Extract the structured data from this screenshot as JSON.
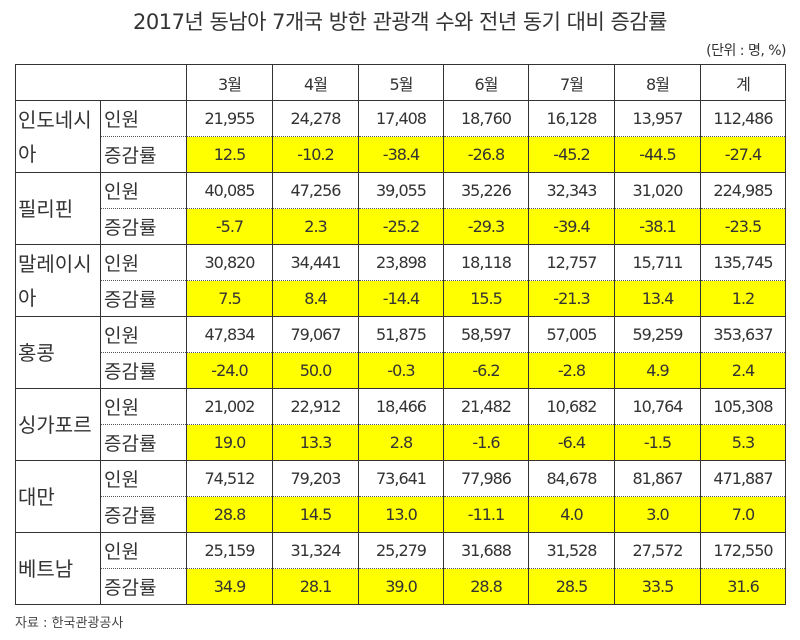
{
  "title": "2017년 동남아 7개국 방한 관광객 수와 전년 동기 대비 증감률",
  "unit": "(단위 : 명, %)",
  "columns": [
    "3월",
    "4월",
    "5월",
    "6월",
    "7월",
    "8월",
    "계"
  ],
  "row_labels": {
    "visitors": "인원",
    "change": "증감률"
  },
  "countries": [
    {
      "name": "인도네시아",
      "visitors": [
        "21,955",
        "24,278",
        "17,408",
        "18,760",
        "16,128",
        "13,957",
        "112,486"
      ],
      "change": [
        "12.5",
        "-10.2",
        "-38.4",
        "-26.8",
        "-45.2",
        "-44.5",
        "-27.4"
      ]
    },
    {
      "name": "필리핀",
      "visitors": [
        "40,085",
        "47,256",
        "39,055",
        "35,226",
        "32,343",
        "31,020",
        "224,985"
      ],
      "change": [
        "-5.7",
        "2.3",
        "-25.2",
        "-29.3",
        "-39.4",
        "-38.1",
        "-23.5"
      ]
    },
    {
      "name": "말레이시아",
      "visitors": [
        "30,820",
        "34,441",
        "23,898",
        "18,118",
        "12,757",
        "15,711",
        "135,745"
      ],
      "change": [
        "7.5",
        "8.4",
        "-14.4",
        "15.5",
        "-21.3",
        "13.4",
        "1.2"
      ]
    },
    {
      "name": "홍콩",
      "visitors": [
        "47,834",
        "79,067",
        "51,875",
        "58,597",
        "57,005",
        "59,259",
        "353,637"
      ],
      "change": [
        "-24.0",
        "50.0",
        "-0.3",
        "-6.2",
        "-2.8",
        "4.9",
        "2.4"
      ]
    },
    {
      "name": "싱가포르",
      "visitors": [
        "21,002",
        "22,912",
        "18,466",
        "21,482",
        "10,682",
        "10,764",
        "105,308"
      ],
      "change": [
        "19.0",
        "13.3",
        "2.8",
        "-1.6",
        "-6.4",
        "-1.5",
        "5.3"
      ]
    },
    {
      "name": "대만",
      "visitors": [
        "74,512",
        "79,203",
        "73,641",
        "77,986",
        "84,678",
        "81,867",
        "471,887"
      ],
      "change": [
        "28.8",
        "14.5",
        "13.0",
        "-11.1",
        "4.0",
        "3.0",
        "7.0"
      ]
    },
    {
      "name": "베트남",
      "visitors": [
        "25,159",
        "31,324",
        "25,279",
        "31,688",
        "31,528",
        "27,572",
        "172,550"
      ],
      "change": [
        "34.9",
        "28.1",
        "39.0",
        "28.8",
        "28.5",
        "33.5",
        "31.6"
      ]
    }
  ],
  "source": "자료 : 한국관광공사",
  "colors": {
    "highlight": "#ffff00",
    "border": "#333333"
  }
}
